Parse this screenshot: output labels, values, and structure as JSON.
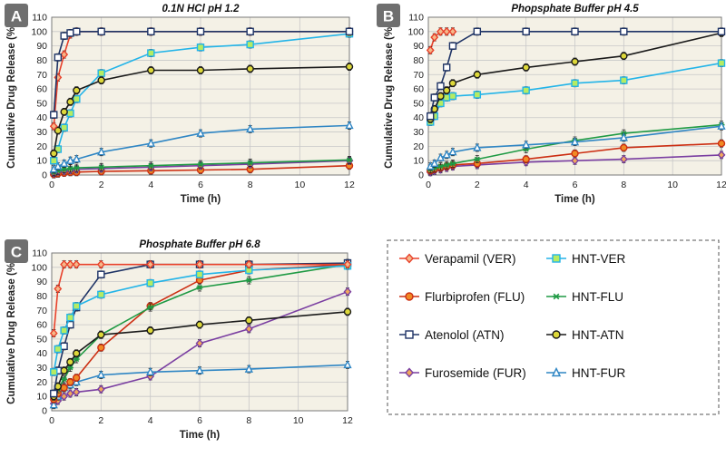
{
  "legend": [
    {
      "id": "VER",
      "label": "Verapamil (VER)",
      "color": "#e8412b",
      "marker": "diamond",
      "fill": "#f5b88a"
    },
    {
      "id": "HNT-VER",
      "label": "HNT-VER",
      "color": "#23b4e8",
      "marker": "square",
      "fill": "#b6eb62"
    },
    {
      "id": "FLU",
      "label": "Flurbiprofen (FLU)",
      "color": "#cc2e12",
      "marker": "circle",
      "fill": "#f08a24"
    },
    {
      "id": "HNT-FLU",
      "label": "HNT-FLU",
      "color": "#1f9a44",
      "marker": "star",
      "fill": "#1f9a44"
    },
    {
      "id": "ATN",
      "label": "Atenolol (ATN)",
      "color": "#1f3466",
      "marker": "square",
      "fill": "#ffffff"
    },
    {
      "id": "HNT-ATN",
      "label": "HNT-ATN",
      "color": "#1a1a1a",
      "marker": "circle",
      "fill": "#ddd83a"
    },
    {
      "id": "FUR",
      "label": "Furosemide (FUR)",
      "color": "#7a3ea1",
      "marker": "diamond",
      "fill": "#f0a95c"
    },
    {
      "id": "HNT-FUR",
      "label": "HNT-FUR",
      "color": "#2f86c4",
      "marker": "triangle",
      "fill": "#ffffff"
    }
  ],
  "chart_data": [
    {
      "panel": "A",
      "type": "line",
      "title": "0.1N HCl pH 1.2",
      "xlabel": "Time (h)",
      "ylabel": "Cumulative Drug Release (%)",
      "xlim": [
        0,
        12
      ],
      "ylim": [
        0,
        110
      ],
      "xticks": [
        0,
        2,
        4,
        6,
        8,
        10,
        12
      ],
      "yticks": [
        0,
        10,
        20,
        30,
        40,
        50,
        60,
        70,
        80,
        90,
        100,
        110
      ],
      "series": [
        {
          "id": "FLU",
          "name": "Flurbiprofen (FLU)",
          "x": [
            0.083,
            0.25,
            0.5,
            0.75,
            1,
            2,
            4,
            6,
            8,
            12
          ],
          "y": [
            0.5,
            1,
            1.5,
            2,
            2,
            2.5,
            3,
            3.5,
            4,
            6.5
          ]
        },
        {
          "id": "FUR",
          "name": "Furosemide (FUR)",
          "x": [
            0.083,
            0.25,
            0.5,
            0.75,
            1,
            2,
            4,
            6,
            8,
            12
          ],
          "y": [
            1.5,
            2.5,
            3,
            3.5,
            4,
            4.5,
            5.5,
            6.5,
            7.5,
            10
          ]
        },
        {
          "id": "HNT-FLU",
          "name": "HNT-FLU",
          "x": [
            0.083,
            0.25,
            0.5,
            0.75,
            1,
            2,
            4,
            6,
            8,
            12
          ],
          "y": [
            2,
            3,
            4,
            4.5,
            5,
            5.5,
            6.5,
            7.5,
            8.5,
            10.5
          ]
        },
        {
          "id": "HNT-FUR",
          "name": "HNT-FUR",
          "x": [
            0.083,
            0.25,
            0.5,
            0.75,
            1,
            2,
            4,
            6,
            8,
            12
          ],
          "y": [
            4,
            6,
            8,
            10,
            11,
            16,
            22,
            29,
            32,
            34.5
          ]
        },
        {
          "id": "HNT-VER",
          "name": "HNT-VER",
          "x": [
            0.083,
            0.25,
            0.5,
            0.75,
            1,
            2,
            4,
            6,
            8,
            12
          ],
          "y": [
            10,
            18,
            33,
            43,
            53,
            71,
            85,
            89,
            91,
            98.5
          ]
        },
        {
          "id": "HNT-ATN",
          "name": "HNT-ATN",
          "x": [
            0.083,
            0.25,
            0.5,
            0.75,
            1,
            2,
            4,
            6,
            8,
            12
          ],
          "y": [
            15,
            31,
            44,
            51,
            59,
            66,
            73,
            73,
            74,
            75.5
          ]
        },
        {
          "id": "VER",
          "name": "Verapamil (VER)",
          "x": [
            0.083,
            0.25,
            0.5,
            0.75,
            1,
            2,
            4,
            6,
            8,
            12
          ],
          "y": [
            34,
            68,
            84,
            98,
            100,
            100,
            100,
            100,
            100,
            100
          ]
        },
        {
          "id": "ATN",
          "name": "Atenolol (ATN)",
          "x": [
            0.083,
            0.25,
            0.5,
            0.75,
            1,
            2,
            4,
            6,
            8,
            12
          ],
          "y": [
            42,
            82,
            97,
            99,
            100,
            100,
            100,
            100,
            100,
            100
          ]
        }
      ]
    },
    {
      "panel": "B",
      "type": "line",
      "title": "Phopsphate Buffer pH 4.5",
      "xlabel": "Time (h)",
      "ylabel": "Cumulative Drug Release (%)",
      "xlim": [
        0,
        12
      ],
      "ylim": [
        0,
        110
      ],
      "xticks": [
        0,
        2,
        4,
        6,
        8,
        10,
        12
      ],
      "yticks": [
        0,
        10,
        20,
        30,
        40,
        50,
        60,
        70,
        80,
        90,
        100,
        110
      ],
      "series": [
        {
          "id": "FUR",
          "name": "Furosemide (FUR)",
          "x": [
            0.083,
            0.25,
            0.5,
            0.75,
            1,
            2,
            4,
            6,
            8,
            12
          ],
          "y": [
            2,
            3,
            4,
            5,
            6,
            7,
            9,
            10,
            11,
            14
          ]
        },
        {
          "id": "FLU",
          "name": "Flurbiprofen (FLU)",
          "x": [
            0.083,
            0.25,
            0.5,
            0.75,
            1,
            2,
            4,
            6,
            8,
            12
          ],
          "y": [
            3,
            4,
            5,
            6,
            7,
            8,
            11,
            15,
            19,
            22
          ]
        },
        {
          "id": "HNT-FLU",
          "name": "HNT-FLU",
          "x": [
            0.083,
            0.25,
            0.5,
            0.75,
            1,
            2,
            4,
            6,
            8,
            12
          ],
          "y": [
            4,
            5,
            6,
            7,
            8,
            11,
            18,
            24,
            29,
            35
          ]
        },
        {
          "id": "HNT-FUR",
          "name": "HNT-FUR",
          "x": [
            0.083,
            0.25,
            0.5,
            0.75,
            1,
            2,
            4,
            6,
            8,
            12
          ],
          "y": [
            6,
            8,
            12,
            14,
            16,
            19,
            21,
            23,
            26,
            34
          ]
        },
        {
          "id": "HNT-VER",
          "name": "HNT-VER",
          "x": [
            0.083,
            0.25,
            0.5,
            0.75,
            1,
            2,
            4,
            6,
            8,
            12
          ],
          "y": [
            37,
            41,
            50,
            54,
            55,
            56,
            59,
            64,
            66,
            78
          ]
        },
        {
          "id": "HNT-ATN",
          "name": "HNT-ATN",
          "x": [
            0.083,
            0.25,
            0.5,
            0.75,
            1,
            2,
            4,
            6,
            8,
            12
          ],
          "y": [
            39,
            46,
            55,
            59,
            64,
            70,
            75,
            79,
            83,
            99
          ]
        },
        {
          "id": "ATN",
          "name": "Atenolol (ATN)",
          "x": [
            0.083,
            0.25,
            0.5,
            0.75,
            1,
            2,
            4,
            6,
            8,
            12
          ],
          "y": [
            41,
            54,
            62,
            75,
            90,
            100,
            100,
            100,
            100,
            100
          ]
        },
        {
          "id": "VER",
          "name": "Verapamil (VER)",
          "x": [
            0.083,
            0.25,
            0.5,
            0.75,
            1
          ],
          "y": [
            87,
            96,
            100,
            100,
            100
          ]
        }
      ]
    },
    {
      "panel": "C",
      "type": "line",
      "title": "Phosphate Buffer pH 6.8",
      "xlabel": "Time (h)",
      "ylabel": "Cumulative Drug Release (%)",
      "xlim": [
        0,
        12
      ],
      "ylim": [
        0,
        110
      ],
      "xticks": [
        0,
        2,
        4,
        6,
        8,
        10,
        12
      ],
      "yticks": [
        0,
        10,
        20,
        30,
        40,
        50,
        60,
        70,
        80,
        90,
        100,
        110
      ],
      "series": [
        {
          "id": "FUR",
          "name": "Furosemide (FUR)",
          "x": [
            0.083,
            0.25,
            0.5,
            0.75,
            1,
            2,
            4,
            6,
            8,
            12
          ],
          "y": [
            5,
            7,
            10,
            12,
            13,
            15,
            24,
            47,
            57,
            83
          ]
        },
        {
          "id": "HNT-FUR",
          "name": "HNT-FUR",
          "x": [
            0.083,
            0.25,
            0.5,
            0.75,
            1,
            2,
            4,
            6,
            8,
            12
          ],
          "y": [
            4,
            10,
            16,
            18,
            20,
            25,
            27,
            28,
            29,
            32
          ]
        },
        {
          "id": "FLU",
          "name": "Flurbiprofen (FLU)",
          "x": [
            0.083,
            0.25,
            0.5,
            0.75,
            1,
            2,
            4,
            6,
            8,
            12
          ],
          "y": [
            8,
            12,
            16,
            20,
            23,
            44,
            73,
            91,
            98,
            102
          ]
        },
        {
          "id": "HNT-FLU",
          "name": "HNT-FLU",
          "x": [
            0.083,
            0.25,
            0.5,
            0.75,
            1,
            2,
            4,
            6,
            8,
            12
          ],
          "y": [
            10,
            15,
            22,
            30,
            36,
            53,
            72,
            86,
            91,
            102
          ]
        },
        {
          "id": "HNT-ATN",
          "name": "HNT-ATN",
          "x": [
            0.083,
            0.25,
            0.5,
            0.75,
            1,
            2,
            4,
            6,
            8,
            12
          ],
          "y": [
            10,
            17,
            28,
            34,
            40,
            53,
            56,
            60,
            63,
            69
          ]
        },
        {
          "id": "ATN",
          "name": "Atenolol (ATN)",
          "x": [
            0.083,
            0.25,
            0.5,
            0.75,
            1,
            2,
            4,
            6,
            8,
            12
          ],
          "y": [
            12,
            28,
            45,
            60,
            72,
            95,
            102,
            102,
            102,
            103
          ]
        },
        {
          "id": "HNT-VER",
          "name": "HNT-VER",
          "x": [
            0.083,
            0.25,
            0.5,
            0.75,
            1,
            2,
            4,
            6,
            8,
            12
          ],
          "y": [
            27,
            43,
            56,
            65,
            73,
            81,
            89,
            95,
            98,
            101
          ]
        },
        {
          "id": "VER",
          "name": "Verapamil (VER)",
          "x": [
            0.083,
            0.25,
            0.5,
            0.75,
            1,
            2,
            4,
            6,
            8,
            12
          ],
          "y": [
            54,
            85,
            102,
            102,
            102,
            102,
            102,
            102,
            102,
            102
          ]
        }
      ]
    }
  ]
}
